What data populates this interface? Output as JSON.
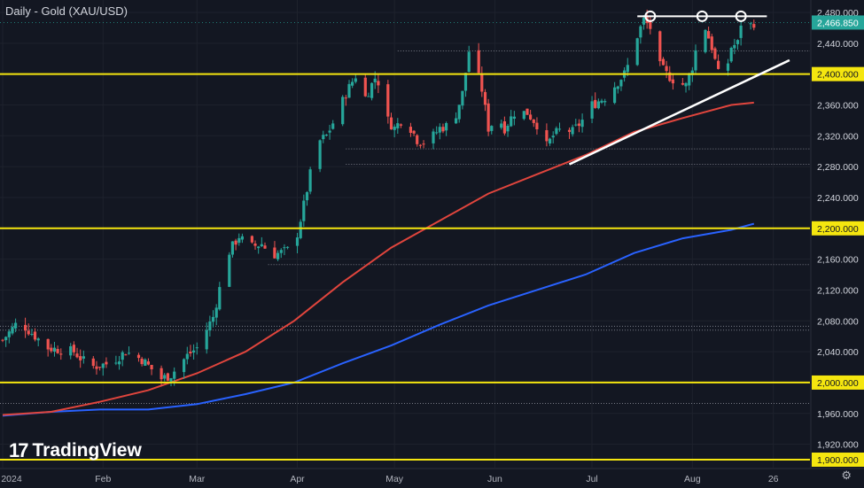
{
  "header": {
    "title": "Daily - Gold (XAU/USD)"
  },
  "branding": {
    "logo_mark": "17",
    "logo_text": "TradingView"
  },
  "controls": {
    "settings_icon": "gear-icon"
  },
  "colors": {
    "background": "#131722",
    "up": "#26a69a",
    "down": "#ef5350",
    "ma_red": "#e0453d",
    "ma_blue": "#2962ff",
    "level": "#f5e60f",
    "trend": "#ffffff"
  },
  "chart_data": {
    "type": "candlestick",
    "title": "Daily - Gold (XAU/USD)",
    "ylim": [
      1895,
      2490
    ],
    "price_ticks": [
      "2,480.000",
      "2,440.000",
      "2,400.000",
      "2,360.000",
      "2,320.000",
      "2,280.000",
      "2,240.000",
      "2,200.000",
      "2,160.000",
      "2,120.000",
      "2,080.000",
      "2,040.000",
      "2,000.000",
      "1,960.000",
      "1,920.000",
      "1,900.000"
    ],
    "tick_values": [
      2480,
      2440,
      2400,
      2360,
      2320,
      2280,
      2240,
      2200,
      2160,
      2120,
      2080,
      2040,
      2000,
      1960,
      1920,
      1900
    ],
    "last_price": {
      "label": "2,466.850",
      "value": 2466.85
    },
    "time_labels": [
      "2024",
      "Feb",
      "Mar",
      "Apr",
      "May",
      "Jun",
      "Jul",
      "Aug",
      "26"
    ],
    "time_tick_days": [
      0,
      31,
      60,
      91,
      121,
      152,
      182,
      213,
      238
    ],
    "horizontal_levels": [
      2400,
      2200,
      2000,
      1900
    ],
    "level_labels": [
      "2,400.000",
      "2,200.000",
      "2,000.000",
      "1,900.000"
    ],
    "dotted_levels": [
      2430,
      2303,
      2283,
      2153,
      2073,
      2068,
      1973
    ],
    "double_top_line": {
      "day_start": 196,
      "day_end": 236,
      "value": 2475,
      "circle_days": [
        200,
        216,
        228
      ]
    },
    "trendline": {
      "start": [
        175,
        2283
      ],
      "end": [
        243,
        2418
      ]
    },
    "ma_red": [
      [
        0,
        1958
      ],
      [
        15,
        1962
      ],
      [
        30,
        1975
      ],
      [
        45,
        1990
      ],
      [
        60,
        2012
      ],
      [
        75,
        2040
      ],
      [
        90,
        2080
      ],
      [
        105,
        2130
      ],
      [
        120,
        2175
      ],
      [
        135,
        2210
      ],
      [
        150,
        2245
      ],
      [
        165,
        2270
      ],
      [
        180,
        2295
      ],
      [
        195,
        2325
      ],
      [
        210,
        2343
      ],
      [
        225,
        2360
      ],
      [
        232,
        2363
      ]
    ],
    "ma_blue": [
      [
        0,
        1957
      ],
      [
        15,
        1962
      ],
      [
        30,
        1965
      ],
      [
        45,
        1965
      ],
      [
        60,
        1972
      ],
      [
        75,
        1985
      ],
      [
        90,
        2000
      ],
      [
        105,
        2025
      ],
      [
        120,
        2048
      ],
      [
        135,
        2075
      ],
      [
        150,
        2100
      ],
      [
        165,
        2120
      ],
      [
        180,
        2140
      ],
      [
        195,
        2168
      ],
      [
        210,
        2187
      ],
      [
        225,
        2198
      ],
      [
        232,
        2206
      ]
    ],
    "anchors": [
      [
        0,
        2055
      ],
      [
        5,
        2080
      ],
      [
        8,
        2068
      ],
      [
        14,
        2045
      ],
      [
        22,
        2040
      ],
      [
        27,
        2020
      ],
      [
        33,
        2025
      ],
      [
        38,
        2040
      ],
      [
        43,
        2030
      ],
      [
        49,
        2005
      ],
      [
        52,
        2010
      ],
      [
        57,
        2035
      ],
      [
        60,
        2045
      ],
      [
        65,
        2085
      ],
      [
        68,
        2140
      ],
      [
        70,
        2170
      ],
      [
        73,
        2190
      ],
      [
        76,
        2175
      ],
      [
        80,
        2180
      ],
      [
        83,
        2165
      ],
      [
        87,
        2170
      ],
      [
        90,
        2175
      ],
      [
        93,
        2230
      ],
      [
        95,
        2270
      ],
      [
        97,
        2310
      ],
      [
        100,
        2320
      ],
      [
        103,
        2345
      ],
      [
        106,
        2375
      ],
      [
        109,
        2398
      ],
      [
        112,
        2370
      ],
      [
        115,
        2395
      ],
      [
        117,
        2385
      ],
      [
        119,
        2340
      ],
      [
        121,
        2330
      ],
      [
        124,
        2345
      ],
      [
        128,
        2315
      ],
      [
        131,
        2310
      ],
      [
        135,
        2330
      ],
      [
        139,
        2335
      ],
      [
        142,
        2375
      ],
      [
        144,
        2430
      ],
      [
        146,
        2410
      ],
      [
        148,
        2380
      ],
      [
        150,
        2330
      ],
      [
        153,
        2345
      ],
      [
        155,
        2330
      ],
      [
        158,
        2350
      ],
      [
        162,
        2350
      ],
      [
        165,
        2335
      ],
      [
        167,
        2300
      ],
      [
        170,
        2320
      ],
      [
        173,
        2330
      ],
      [
        176,
        2325
      ],
      [
        179,
        2340
      ],
      [
        182,
        2360
      ],
      [
        186,
        2370
      ],
      [
        189,
        2385
      ],
      [
        192,
        2400
      ],
      [
        194,
        2420
      ],
      [
        196,
        2450
      ],
      [
        198,
        2470
      ],
      [
        200,
        2460
      ],
      [
        202,
        2415
      ],
      [
        205,
        2400
      ],
      [
        208,
        2390
      ],
      [
        211,
        2385
      ],
      [
        213,
        2410
      ],
      [
        215,
        2450
      ],
      [
        217,
        2460
      ],
      [
        219,
        2435
      ],
      [
        221,
        2400
      ],
      [
        223,
        2395
      ],
      [
        225,
        2435
      ],
      [
        227,
        2440
      ],
      [
        228,
        2466
      ],
      [
        230,
        2460
      ],
      [
        232,
        2466.85
      ]
    ]
  }
}
